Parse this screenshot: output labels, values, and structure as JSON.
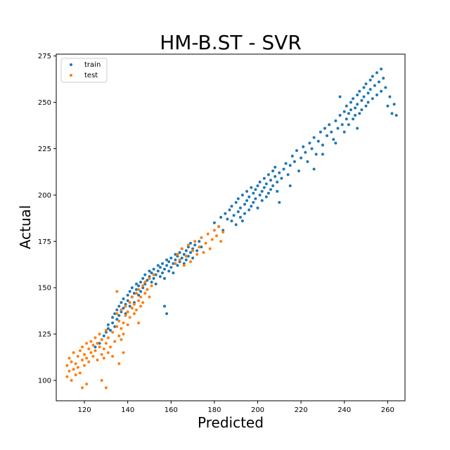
{
  "chart_data": {
    "type": "scatter",
    "title": "HM-B.ST - SVR",
    "xlabel": "Predicted",
    "ylabel": "Actual",
    "xlim": [
      107,
      268
    ],
    "ylim": [
      89,
      276
    ],
    "xticks": [
      120,
      140,
      160,
      180,
      200,
      220,
      240,
      260
    ],
    "yticks": [
      100,
      125,
      150,
      175,
      200,
      225,
      250,
      275
    ],
    "grid": false,
    "legend": "top-left",
    "series": [
      {
        "name": "train",
        "color": "#1f77b4",
        "points": [
          [
            125,
            118
          ],
          [
            127,
            120
          ],
          [
            128,
            122
          ],
          [
            129,
            124
          ],
          [
            130,
            126
          ],
          [
            131,
            128
          ],
          [
            131,
            130
          ],
          [
            132,
            127
          ],
          [
            133,
            131
          ],
          [
            133,
            134
          ],
          [
            134,
            129
          ],
          [
            134,
            136
          ],
          [
            135,
            133
          ],
          [
            135,
            138
          ],
          [
            136,
            135
          ],
          [
            136,
            140
          ],
          [
            137,
            137
          ],
          [
            137,
            142
          ],
          [
            138,
            139
          ],
          [
            138,
            144
          ],
          [
            139,
            141
          ],
          [
            139,
            136
          ],
          [
            140,
            143
          ],
          [
            140,
            146
          ],
          [
            141,
            140
          ],
          [
            141,
            148
          ],
          [
            142,
            145
          ],
          [
            142,
            150
          ],
          [
            143,
            147
          ],
          [
            143,
            142
          ],
          [
            144,
            149
          ],
          [
            144,
            152
          ],
          [
            145,
            151
          ],
          [
            145,
            146
          ],
          [
            146,
            153
          ],
          [
            146,
            148
          ],
          [
            147,
            155
          ],
          [
            147,
            150
          ],
          [
            148,
            152
          ],
          [
            148,
            157
          ],
          [
            149,
            154
          ],
          [
            149,
            149
          ],
          [
            150,
            156
          ],
          [
            150,
            159
          ],
          [
            151,
            153
          ],
          [
            151,
            158
          ],
          [
            152,
            155
          ],
          [
            152,
            160
          ],
          [
            153,
            157
          ],
          [
            153,
            152
          ],
          [
            154,
            159
          ],
          [
            154,
            162
          ],
          [
            155,
            156
          ],
          [
            155,
            161
          ],
          [
            156,
            158
          ],
          [
            156,
            163
          ],
          [
            157,
            160
          ],
          [
            157,
            155
          ],
          [
            158,
            162
          ],
          [
            158,
            165
          ],
          [
            159,
            159
          ],
          [
            159,
            164
          ],
          [
            160,
            161
          ],
          [
            160,
            166
          ],
          [
            161,
            163
          ],
          [
            161,
            158
          ],
          [
            162,
            165
          ],
          [
            162,
            168
          ],
          [
            163,
            162
          ],
          [
            163,
            167
          ],
          [
            164,
            164
          ],
          [
            164,
            169
          ],
          [
            165,
            166
          ],
          [
            165,
            171
          ],
          [
            166,
            163
          ],
          [
            166,
            168
          ],
          [
            167,
            170
          ],
          [
            167,
            165
          ],
          [
            168,
            172
          ],
          [
            168,
            167
          ],
          [
            169,
            169
          ],
          [
            169,
            174
          ],
          [
            170,
            171
          ],
          [
            170,
            166
          ],
          [
            171,
            173
          ],
          [
            172,
            170
          ],
          [
            173,
            175
          ],
          [
            174,
            172
          ],
          [
            158,
            136
          ],
          [
            157,
            140
          ],
          [
            180,
            185
          ],
          [
            182,
            183
          ],
          [
            183,
            188
          ],
          [
            184,
            181
          ],
          [
            185,
            190
          ],
          [
            186,
            187
          ],
          [
            187,
            192
          ],
          [
            188,
            186
          ],
          [
            188,
            194
          ],
          [
            189,
            189
          ],
          [
            190,
            196
          ],
          [
            190,
            184
          ],
          [
            191,
            191
          ],
          [
            191,
            198
          ],
          [
            192,
            188
          ],
          [
            192,
            193
          ],
          [
            193,
            200
          ],
          [
            193,
            186
          ],
          [
            194,
            195
          ],
          [
            194,
            190
          ],
          [
            195,
            197
          ],
          [
            195,
            202
          ],
          [
            196,
            192
          ],
          [
            196,
            199
          ],
          [
            197,
            194
          ],
          [
            197,
            204
          ],
          [
            198,
            201
          ],
          [
            198,
            196
          ],
          [
            199,
            203
          ],
          [
            199,
            198
          ],
          [
            200,
            205
          ],
          [
            200,
            193
          ],
          [
            201,
            200
          ],
          [
            201,
            207
          ],
          [
            202,
            202
          ],
          [
            202,
            197
          ],
          [
            203,
            209
          ],
          [
            203,
            204
          ],
          [
            204,
            199
          ],
          [
            204,
            206
          ],
          [
            205,
            211
          ],
          [
            205,
            201
          ],
          [
            206,
            208
          ],
          [
            206,
            203
          ],
          [
            207,
            213
          ],
          [
            207,
            205
          ],
          [
            208,
            210
          ],
          [
            208,
            215
          ],
          [
            209,
            207
          ],
          [
            209,
            202
          ],
          [
            210,
            212
          ],
          [
            211,
            209
          ],
          [
            212,
            214
          ],
          [
            213,
            217
          ],
          [
            214,
            211
          ],
          [
            215,
            216
          ],
          [
            216,
            221
          ],
          [
            217,
            218
          ],
          [
            218,
            224
          ],
          [
            219,
            213
          ],
          [
            220,
            220
          ],
          [
            221,
            226
          ],
          [
            222,
            223
          ],
          [
            223,
            218
          ],
          [
            224,
            228
          ],
          [
            225,
            225
          ],
          [
            226,
            231
          ],
          [
            227,
            222
          ],
          [
            228,
            229
          ],
          [
            229,
            234
          ],
          [
            230,
            227
          ],
          [
            231,
            236
          ],
          [
            232,
            232
          ],
          [
            233,
            238
          ],
          [
            234,
            234
          ],
          [
            235,
            230
          ],
          [
            236,
            240
          ],
          [
            237,
            236
          ],
          [
            238,
            243
          ],
          [
            239,
            238
          ],
          [
            240,
            245
          ],
          [
            240,
            234
          ],
          [
            241,
            241
          ],
          [
            241,
            248
          ],
          [
            242,
            244
          ],
          [
            242,
            238
          ],
          [
            243,
            250
          ],
          [
            243,
            246
          ],
          [
            244,
            241
          ],
          [
            244,
            252
          ],
          [
            245,
            247
          ],
          [
            245,
            243
          ],
          [
            246,
            254
          ],
          [
            246,
            249
          ],
          [
            247,
            244
          ],
          [
            247,
            256
          ],
          [
            248,
            251
          ],
          [
            248,
            246
          ],
          [
            249,
            258
          ],
          [
            249,
            253
          ],
          [
            250,
            248
          ],
          [
            250,
            260
          ],
          [
            251,
            255
          ],
          [
            251,
            250
          ],
          [
            252,
            262
          ],
          [
            252,
            257
          ],
          [
            253,
            252
          ],
          [
            253,
            264
          ],
          [
            254,
            259
          ],
          [
            255,
            254
          ],
          [
            256,
            261
          ],
          [
            257,
            256
          ],
          [
            258,
            263
          ],
          [
            259,
            258
          ],
          [
            260,
            248
          ],
          [
            261,
            253
          ],
          [
            262,
            244
          ],
          [
            263,
            249
          ],
          [
            264,
            243
          ],
          [
            255,
            266
          ],
          [
            257,
            268
          ],
          [
            236,
            228
          ],
          [
            230,
            222
          ],
          [
            246,
            236
          ],
          [
            226,
            214
          ],
          [
            238,
            253
          ],
          [
            210,
            196
          ],
          [
            215,
            205
          ]
        ]
      },
      {
        "name": "test",
        "color": "#ff7f0e",
        "points": [
          [
            112,
            102
          ],
          [
            112,
            108
          ],
          [
            113,
            105
          ],
          [
            113,
            112
          ],
          [
            114,
            100
          ],
          [
            114,
            110
          ],
          [
            115,
            106
          ],
          [
            115,
            115
          ],
          [
            116,
            103
          ],
          [
            116,
            109
          ],
          [
            117,
            113
          ],
          [
            117,
            107
          ],
          [
            118,
            116
          ],
          [
            118,
            104
          ],
          [
            119,
            111
          ],
          [
            119,
            118
          ],
          [
            120,
            114
          ],
          [
            120,
            108
          ],
          [
            121,
            120
          ],
          [
            121,
            112
          ],
          [
            122,
            117
          ],
          [
            122,
            110
          ],
          [
            123,
            121
          ],
          [
            123,
            115
          ],
          [
            124,
            119
          ],
          [
            124,
            113
          ],
          [
            125,
            123
          ],
          [
            125,
            116
          ],
          [
            126,
            111
          ],
          [
            126,
            120
          ],
          [
            127,
            118
          ],
          [
            127,
            125
          ],
          [
            128,
            114
          ],
          [
            128,
            122
          ],
          [
            129,
            117
          ],
          [
            129,
            112
          ],
          [
            130,
            120
          ],
          [
            130,
            127
          ],
          [
            131,
            115
          ],
          [
            131,
            123
          ],
          [
            132,
            118
          ],
          [
            133,
            126
          ],
          [
            134,
            121
          ],
          [
            135,
            129
          ],
          [
            135,
            136
          ],
          [
            136,
            124
          ],
          [
            136,
            132
          ],
          [
            137,
            128
          ],
          [
            137,
            138
          ],
          [
            138,
            131
          ],
          [
            138,
            125
          ],
          [
            139,
            135
          ],
          [
            139,
            140
          ],
          [
            140,
            130
          ],
          [
            140,
            137
          ],
          [
            141,
            142
          ],
          [
            141,
            134
          ],
          [
            142,
            139
          ],
          [
            142,
            145
          ],
          [
            143,
            136
          ],
          [
            143,
            141
          ],
          [
            144,
            147
          ],
          [
            144,
            138
          ],
          [
            145,
            143
          ],
          [
            145,
            149
          ],
          [
            146,
            140
          ],
          [
            146,
            145
          ],
          [
            147,
            151
          ],
          [
            147,
            142
          ],
          [
            148,
            147
          ],
          [
            148,
            153
          ],
          [
            149,
            149
          ],
          [
            150,
            155
          ],
          [
            150,
            145
          ],
          [
            151,
            151
          ],
          [
            152,
            157
          ],
          [
            133,
            113
          ],
          [
            136,
            109
          ],
          [
            138,
            115
          ],
          [
            130,
            96
          ],
          [
            128,
            100
          ],
          [
            121,
            98
          ],
          [
            119,
            96
          ],
          [
            162,
            163
          ],
          [
            163,
            168
          ],
          [
            164,
            165
          ],
          [
            165,
            171
          ],
          [
            166,
            162
          ],
          [
            167,
            167
          ],
          [
            168,
            173
          ],
          [
            169,
            164
          ],
          [
            170,
            170
          ],
          [
            171,
            175
          ],
          [
            172,
            168
          ],
          [
            173,
            172
          ],
          [
            174,
            177
          ],
          [
            175,
            169
          ],
          [
            176,
            174
          ],
          [
            177,
            179
          ],
          [
            178,
            171
          ],
          [
            179,
            176
          ],
          [
            180,
            181
          ],
          [
            181,
            178
          ],
          [
            182,
            183
          ],
          [
            183,
            175
          ],
          [
            184,
            180
          ],
          [
            135,
            148
          ],
          [
            145,
            131
          ],
          [
            137,
            122
          ]
        ]
      }
    ]
  }
}
